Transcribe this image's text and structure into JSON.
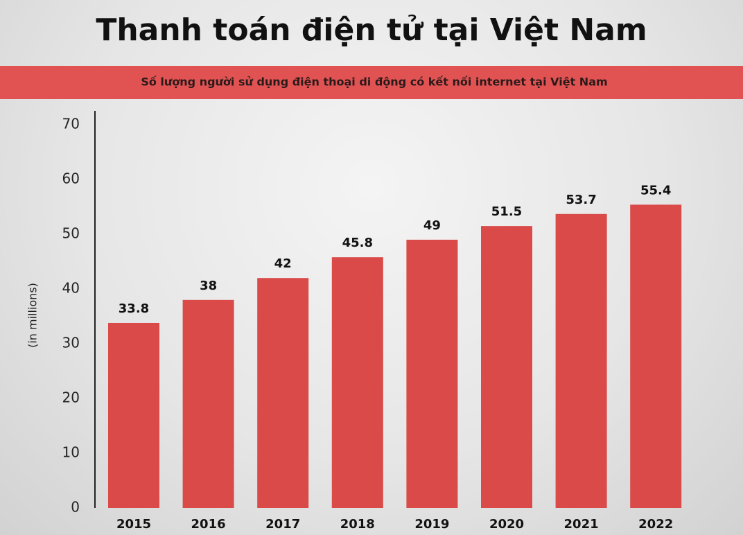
{
  "chart_data": {
    "type": "bar",
    "title": "Thanh toán điện tử tại Việt Nam",
    "subtitle": "Số lượng người sử dụng điện thoại di động có kết nối internet tại Việt Nam",
    "y_label": "(in millions)",
    "categories": [
      "2015",
      "2016",
      "2017",
      "2018",
      "2019",
      "2020",
      "2021",
      "2022"
    ],
    "values": [
      33.8,
      38,
      42,
      45.8,
      49,
      51.5,
      53.7,
      55.4
    ],
    "color": "#d94a48",
    "ylim": [
      0,
      70
    ],
    "yticks": [
      0,
      10,
      20,
      30,
      40,
      50,
      60,
      70
    ],
    "grid": false
  }
}
